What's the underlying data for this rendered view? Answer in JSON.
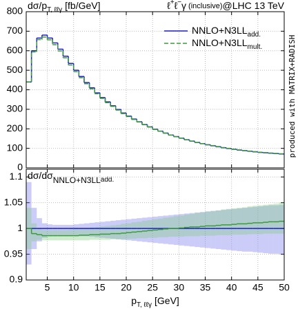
{
  "chart_data": [
    {
      "type": "histogram",
      "title": [
        "ℓ",
        "+",
        "ℓ",
        "−",
        "γ",
        "(inclusive)",
        "@LHC 13 TeV"
      ],
      "y_label": [
        "dσ/p",
        "T, ℓℓγ",
        "[fb/GeV]"
      ],
      "note": "produced with MATRIX+RADISH",
      "bins": [
        1,
        2,
        3,
        4,
        5,
        6,
        7,
        8,
        9,
        10,
        11,
        12,
        13,
        14,
        15,
        16,
        17,
        18,
        19,
        20,
        21,
        22,
        23,
        24,
        25,
        26,
        27,
        28,
        29,
        30,
        31,
        32,
        33,
        34,
        35,
        36,
        37,
        38,
        39,
        40,
        41,
        42,
        43,
        44,
        45,
        46,
        47,
        48,
        49,
        50
      ],
      "series": [
        {
          "name": [
            "NNLO+N3LL",
            "add."
          ],
          "color": "#1c1cc8",
          "linestyle": "solid",
          "values": [
            440,
            600,
            665,
            680,
            665,
            640,
            608,
            572,
            535,
            500,
            468,
            437,
            410,
            384,
            360,
            338,
            318,
            299,
            281,
            265,
            250,
            236,
            222,
            210,
            198,
            188,
            178,
            168,
            160,
            152,
            144,
            137,
            130,
            124,
            118,
            113,
            108,
            103,
            99,
            95,
            91,
            88,
            85,
            82,
            79,
            77,
            75,
            73,
            71
          ]
        },
        {
          "name": [
            "NNLO+N3LL",
            "mult."
          ],
          "color": "#3a9a3a",
          "linestyle": "dashed",
          "values": [
            440,
            594,
            657,
            670,
            656,
            631,
            599,
            564,
            527,
            493,
            462,
            431,
            405,
            380,
            356,
            334,
            315,
            296,
            278,
            263,
            248,
            235,
            221,
            209,
            197,
            188,
            178,
            168,
            160,
            152,
            144,
            137,
            130,
            124,
            119,
            114,
            109,
            104,
            100,
            96,
            92,
            89,
            86,
            83,
            80,
            78,
            76,
            74,
            72
          ]
        }
      ],
      "xlim": [
        1,
        50
      ],
      "xticks": [
        5,
        10,
        15,
        20,
        25,
        30,
        35,
        40,
        45,
        50
      ],
      "ylim": [
        0,
        800
      ],
      "yticks": [
        0,
        100,
        200,
        300,
        400,
        500,
        600,
        700,
        800
      ],
      "grid": true,
      "legend": "upper right"
    },
    {
      "type": "histogram",
      "y_label": [
        "dσ/dσ",
        "NNLO+N3LL",
        "add."
      ],
      "x_label": [
        "p",
        "T, ℓℓγ",
        "[GeV]"
      ],
      "bins": [
        1,
        2,
        3,
        4,
        5,
        6,
        7,
        8,
        9,
        10,
        11,
        12,
        13,
        14,
        15,
        16,
        17,
        18,
        19,
        20,
        21,
        22,
        23,
        24,
        25,
        26,
        27,
        28,
        29,
        30,
        31,
        32,
        33,
        34,
        35,
        36,
        37,
        38,
        39,
        40,
        41,
        42,
        43,
        44,
        45,
        46,
        47,
        48,
        49,
        50
      ],
      "series": [
        {
          "color": "#1c1cc8",
          "linestyle": "solid",
          "band_color": "rgba(110,110,235,0.35)",
          "values": [
            1,
            1,
            1,
            1,
            1,
            1,
            1,
            1,
            1,
            1,
            1,
            1,
            1,
            1,
            1,
            1,
            1,
            1,
            1,
            1,
            1,
            1,
            1,
            1,
            1,
            1,
            1,
            1,
            1,
            1,
            1,
            1,
            1,
            1,
            1,
            1,
            1,
            1,
            1,
            1,
            1,
            1,
            1,
            1,
            1,
            1,
            1,
            1,
            1
          ],
          "band_low": [
            0.93,
            0.96,
            0.975,
            0.982,
            0.985,
            0.986,
            0.986,
            0.986,
            0.986,
            0.986,
            0.985,
            0.985,
            0.984,
            0.983,
            0.982,
            0.981,
            0.98,
            0.979,
            0.978,
            0.977,
            0.976,
            0.975,
            0.974,
            0.973,
            0.972,
            0.971,
            0.97,
            0.969,
            0.968,
            0.967,
            0.966,
            0.965,
            0.964,
            0.963,
            0.962,
            0.961,
            0.96,
            0.959,
            0.958,
            0.957,
            0.956,
            0.955,
            0.955,
            0.954,
            0.953,
            0.952,
            0.951,
            0.951,
            0.95
          ],
          "band_high": [
            1.09,
            1.04,
            1.02,
            1.01,
            1.008,
            1.007,
            1.007,
            1.007,
            1.007,
            1.008,
            1.009,
            1.01,
            1.011,
            1.012,
            1.013,
            1.014,
            1.015,
            1.016,
            1.017,
            1.018,
            1.019,
            1.02,
            1.021,
            1.022,
            1.023,
            1.024,
            1.025,
            1.026,
            1.027,
            1.028,
            1.029,
            1.03,
            1.031,
            1.032,
            1.033,
            1.034,
            1.035,
            1.036,
            1.037,
            1.038,
            1.039,
            1.04,
            1.041,
            1.042,
            1.043,
            1.044,
            1.045,
            1.045,
            1.046
          ]
        },
        {
          "color": "#3a9a3a",
          "linestyle": "solid",
          "band_color": "rgba(120,200,120,0.35)",
          "values": [
            1.0,
            0.99,
            0.988,
            0.986,
            0.986,
            0.986,
            0.986,
            0.986,
            0.986,
            0.986,
            0.987,
            0.987,
            0.988,
            0.988,
            0.989,
            0.989,
            0.99,
            0.99,
            0.991,
            0.992,
            0.993,
            0.994,
            0.995,
            0.996,
            0.997,
            0.998,
            0.999,
            1.0,
            1.0,
            1.001,
            1.002,
            1.003,
            1.003,
            1.004,
            1.005,
            1.005,
            1.006,
            1.007,
            1.007,
            1.008,
            1.009,
            1.009,
            1.01,
            1.011,
            1.011,
            1.012,
            1.013,
            1.013,
            1.014
          ],
          "band_low": [
            0.96,
            0.975,
            0.978,
            0.977,
            0.977,
            0.977,
            0.977,
            0.977,
            0.977,
            0.977,
            0.977,
            0.977,
            0.978,
            0.978,
            0.978,
            0.978,
            0.979,
            0.979,
            0.979,
            0.98,
            0.98,
            0.981,
            0.981,
            0.982,
            0.982,
            0.983,
            0.983,
            0.984,
            0.984,
            0.984,
            0.985,
            0.985,
            0.985,
            0.986,
            0.986,
            0.986,
            0.987,
            0.987,
            0.987,
            0.988,
            0.988,
            0.988,
            0.989,
            0.989,
            0.989,
            0.99,
            0.99,
            0.99,
            0.99
          ],
          "band_high": [
            1.04,
            1.01,
            1.0,
            0.997,
            0.997,
            0.997,
            0.997,
            0.997,
            0.998,
            0.999,
            1.0,
            1.001,
            1.002,
            1.003,
            1.004,
            1.005,
            1.006,
            1.007,
            1.009,
            1.01,
            1.012,
            1.013,
            1.015,
            1.016,
            1.018,
            1.019,
            1.021,
            1.022,
            1.024,
            1.025,
            1.027,
            1.028,
            1.03,
            1.031,
            1.033,
            1.034,
            1.035,
            1.037,
            1.038,
            1.039,
            1.04,
            1.041,
            1.043,
            1.044,
            1.045,
            1.046,
            1.047,
            1.048,
            1.05
          ]
        }
      ],
      "xlim": [
        1,
        50
      ],
      "xticks": [
        5,
        10,
        15,
        20,
        25,
        30,
        35,
        40,
        45,
        50
      ],
      "ylim": [
        0.9,
        1.115
      ],
      "yticks": [
        0.9,
        0.95,
        1,
        1.05,
        1.1
      ],
      "grid": true
    }
  ]
}
